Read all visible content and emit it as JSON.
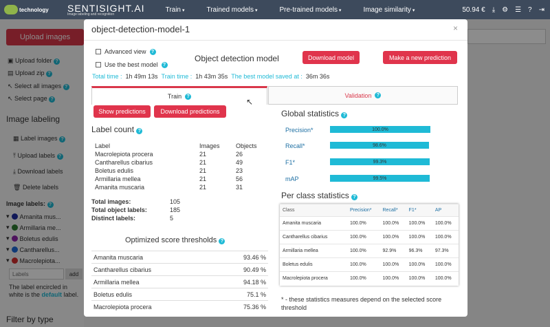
{
  "topbar": {
    "logo_text": "technology",
    "brand": "SENTISIGHT.AI",
    "brand_tag": "Image labeling and recognition",
    "nav": [
      "Train",
      "Trained models",
      "Pre-trained models",
      "Image similarity"
    ],
    "balance": "50.94 €",
    "icons": [
      "download-icon",
      "gear-icon",
      "list-icon",
      "help-icon",
      "logout-icon"
    ]
  },
  "sidebar": {
    "upload_button": "Upload images",
    "actions": [
      "Upload folder",
      "Upload zip",
      "Select all images",
      "Select page"
    ],
    "labeling_heading": "Image labeling",
    "labeling_actions": [
      "Label images",
      "Upload labels",
      "Download labels",
      "Delete labels"
    ],
    "labels_heading": "Image labels:",
    "labels": [
      {
        "name": "Amanita mus...",
        "color": "#1f2fa0"
      },
      {
        "name": "Armillaria me...",
        "color": "#2e7d32"
      },
      {
        "name": "Boletus edulis",
        "color": "#8e24aa"
      },
      {
        "name": "Cantharellus...",
        "color": "#1e6ad8"
      },
      {
        "name": "Macrolepiota...",
        "color": "#d32f2f"
      }
    ],
    "labels_placeholder": "Labels",
    "add_label": "add",
    "note_part1": "The label encircled in white is the",
    "note_default": "default",
    "note_part2": "label.",
    "filter_heading": "Filter by type"
  },
  "modal": {
    "title": "object-detection-model-1",
    "close": "×",
    "advanced_view": "Advanced view",
    "use_best": "Use the best model",
    "heading": "Object detection model",
    "download_model": "Download model",
    "make_prediction": "Make a new prediction",
    "total_time_label": "Total time :",
    "total_time": "1h 49m 13s",
    "train_time_label": "Train time :",
    "train_time": "1h 43m 35s",
    "best_saved_label": "The best model saved at :",
    "best_saved": "36m 36s",
    "tab_train": "Train",
    "tab_validation": "Validation",
    "show_predictions": "Show predictions",
    "download_predictions": "Download predictions",
    "label_count_heading": "Label count",
    "label_count_headers": [
      "Label",
      "Images",
      "Objects"
    ],
    "label_count_rows": [
      [
        "Macrolepiota procera",
        "21",
        "26"
      ],
      [
        "Cantharellus cibarius",
        "21",
        "49"
      ],
      [
        "Boletus edulis",
        "21",
        "23"
      ],
      [
        "Armillaria mellea",
        "21",
        "56"
      ],
      [
        "Amanita muscaria",
        "21",
        "31"
      ]
    ],
    "totals": [
      {
        "label": "Total images:",
        "value": "105"
      },
      {
        "label": "Total object labels:",
        "value": "185"
      },
      {
        "label": "Distinct labels:",
        "value": "5"
      }
    ],
    "thresholds_heading": "Optimized score thresholds",
    "thresholds": [
      [
        "Amanita muscaria",
        "93.46 %"
      ],
      [
        "Cantharellus cibarius",
        "90.49 %"
      ],
      [
        "Armillaria mellea",
        "94.18 %"
      ],
      [
        "Boletus edulis",
        "75.1 %"
      ],
      [
        "Macrolepiota procera",
        "75.36 %"
      ]
    ],
    "global_heading": "Global statistics",
    "global_stats": [
      {
        "label": "Precision*",
        "value": "100.0%",
        "fill": 1.0
      },
      {
        "label": "Recall*",
        "value": "98.6%",
        "fill": 0.986
      },
      {
        "label": "F1*",
        "value": "99.3%",
        "fill": 0.993
      },
      {
        "label": "mAP",
        "value": "99.5%",
        "fill": 0.995
      }
    ],
    "per_class_heading": "Per class statistics",
    "per_class_headers": [
      "Class",
      "Precision*",
      "Recall*",
      "F1*",
      "AP"
    ],
    "per_class_rows": [
      [
        "Amanita muscaria",
        "100.0%",
        "100.0%",
        "100.0%",
        "100.0%"
      ],
      [
        "Cantharellus cibarius",
        "100.0%",
        "100.0%",
        "100.0%",
        "100.0%"
      ],
      [
        "Armillaria mellea",
        "100.0%",
        "92.9%",
        "96.3%",
        "97.3%"
      ],
      [
        "Boletus edulis",
        "100.0%",
        "100.0%",
        "100.0%",
        "100.0%"
      ],
      [
        "Macrolepiota procera",
        "100.0%",
        "100.0%",
        "100.0%",
        "100.0%"
      ]
    ],
    "footnote": "* - these statistics measures depend on the selected score threshold"
  },
  "colors": {
    "accent_red": "#e0344c",
    "accent_cyan": "#1fbad6",
    "topbar": "#3d4a5c"
  }
}
